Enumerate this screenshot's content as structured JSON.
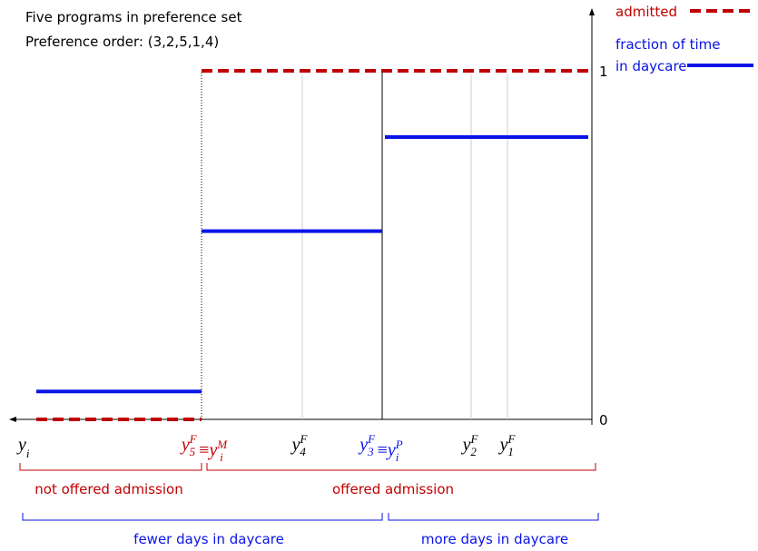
{
  "chart_data": {
    "type": "step",
    "notes": [
      "Five programs in preference set",
      "Preference order: (3,2,5,1,4)"
    ],
    "xlabel": {
      "base": "y",
      "sub": "i"
    },
    "x_labels": [
      {
        "color": "#c00000",
        "parts": [
          {
            "base": "y",
            "sup": "F",
            "sub": "5"
          },
          "≡",
          {
            "base": "y",
            "sup": "M",
            "sub": "i"
          }
        ]
      },
      {
        "color": "#000000",
        "parts": [
          {
            "base": "y",
            "sup": "F",
            "sub": "4"
          }
        ]
      },
      {
        "color": "#0a14e6",
        "parts": [
          {
            "base": "y",
            "sup": "F",
            "sub": "3"
          },
          "≡",
          {
            "base": "y",
            "sup": "P",
            "sub": "i"
          }
        ]
      },
      {
        "color": "#000000",
        "parts": [
          {
            "base": "y",
            "sup": "F",
            "sub": "2"
          }
        ]
      },
      {
        "color": "#000000",
        "parts": [
          {
            "base": "y",
            "sup": "F",
            "sub": "1"
          }
        ]
      }
    ],
    "series": [
      {
        "name": [
          "admitted"
        ],
        "color": "#c00000",
        "dashed": true,
        "values": [
          0,
          1
        ]
      },
      {
        "name": [
          "fraction of time",
          "in daycare"
        ],
        "color": "#0a14e6",
        "dashed": false,
        "values": [
          0.08,
          0.54,
          0.81
        ]
      }
    ],
    "ylim": [
      0,
      1
    ],
    "yticks": [
      0,
      1
    ],
    "brackets": [
      {
        "label": "not offered admission",
        "color": "#c00000"
      },
      {
        "label": "offered admission",
        "color": "#c00000"
      },
      {
        "label": "fewer days in daycare",
        "color": "#0a14e6"
      },
      {
        "label": "more days in daycare",
        "color": "#0a14e6"
      }
    ]
  }
}
